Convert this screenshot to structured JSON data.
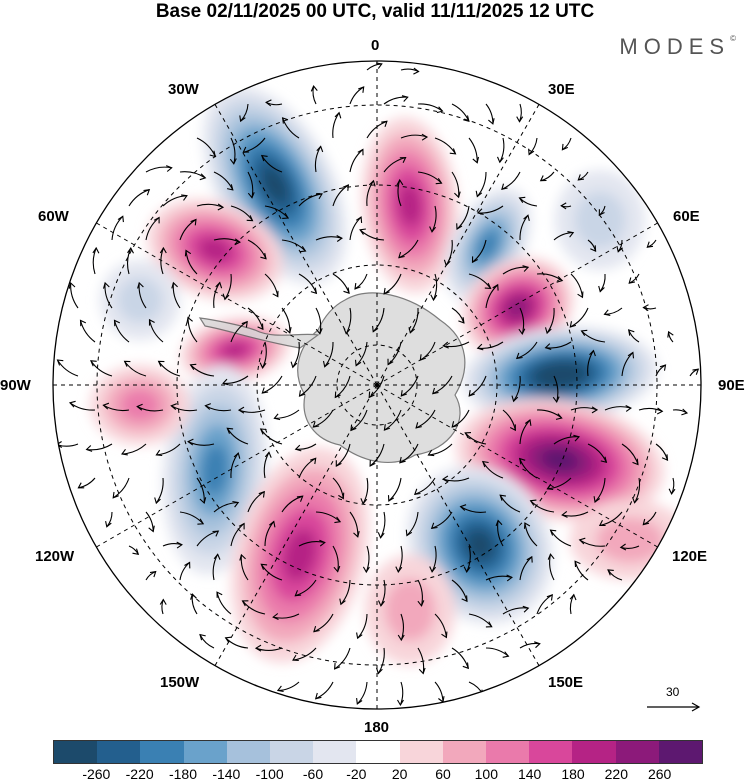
{
  "title": "Base 02/11/2025 00 UTC, valid 11/11/2025 12 UTC",
  "brand": "MODES",
  "brand_mark": "©",
  "longitude_labels": [
    {
      "id": "lon-0",
      "text": "0"
    },
    {
      "id": "lon-30e",
      "text": "30E"
    },
    {
      "id": "lon-60e",
      "text": "60E"
    },
    {
      "id": "lon-90e",
      "text": "90E"
    },
    {
      "id": "lon-120e",
      "text": "120E"
    },
    {
      "id": "lon-150e",
      "text": "150E"
    },
    {
      "id": "lon-180",
      "text": "180"
    },
    {
      "id": "lon-150w",
      "text": "150W"
    },
    {
      "id": "lon-120w",
      "text": "120W"
    },
    {
      "id": "lon-90w",
      "text": "90W"
    },
    {
      "id": "lon-60w",
      "text": "60W"
    },
    {
      "id": "lon-30w",
      "text": "30W"
    }
  ],
  "reference_vector": "30",
  "colorbar": {
    "colors": [
      "#1c4a6b",
      "#235f8e",
      "#3a80b3",
      "#6aa2cb",
      "#a6c1dc",
      "#c9d5e6",
      "#e3e6f0",
      "#ffffff",
      "#f8d5da",
      "#f2a8bc",
      "#ea7aab",
      "#d9479b",
      "#b52385",
      "#8c1a7a",
      "#5d1870"
    ],
    "ticks": [
      "-260",
      "-220",
      "-180",
      "-140",
      "-100",
      "-60",
      "-20",
      "20",
      "60",
      "100",
      "140",
      "180",
      "220",
      "260"
    ]
  },
  "colors": {
    "coast": "#666666",
    "land": "#d9d9d9",
    "vector": "#000000",
    "grid": "#000000"
  }
}
